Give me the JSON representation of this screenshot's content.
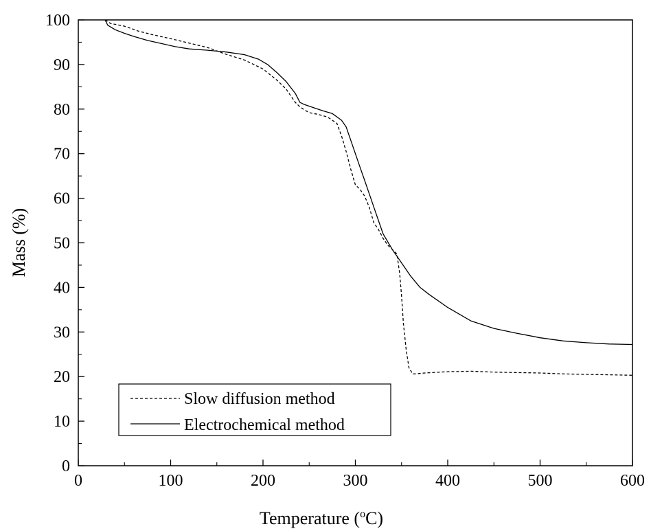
{
  "chart_data": {
    "type": "line",
    "xlabel": "Temperature (",
    "xlabel_sup": "o",
    "xlabel_suffix": "C)",
    "ylabel": "Mass (%)",
    "xlim": [
      0,
      600
    ],
    "ylim": [
      0,
      100
    ],
    "xticks": [
      0,
      100,
      200,
      300,
      400,
      500,
      600
    ],
    "yticks": [
      0,
      10,
      20,
      30,
      40,
      50,
      60,
      70,
      80,
      90,
      100
    ],
    "grid": false,
    "legend_position": "bottom-left",
    "series": [
      {
        "name": "Slow diffusion method",
        "style": "dashed",
        "color": "#000000",
        "x": [
          29,
          35,
          50,
          65,
          80,
          100,
          120,
          140,
          160,
          180,
          200,
          215,
          225,
          235,
          240,
          245,
          250,
          260,
          270,
          280,
          285,
          290,
          295,
          300,
          305,
          310,
          315,
          320,
          325,
          330,
          335,
          340,
          345,
          348,
          350,
          352,
          355,
          358,
          362,
          365,
          375,
          400,
          425,
          450,
          475,
          500,
          525,
          550,
          575,
          600
        ],
        "y": [
          100,
          99.2,
          98.6,
          97.5,
          96.7,
          95.8,
          94.8,
          93.8,
          92.3,
          91.0,
          89.0,
          86.5,
          84.5,
          81.5,
          80.5,
          79.8,
          79.2,
          78.8,
          78.2,
          76.8,
          74.0,
          70.5,
          66.5,
          63.0,
          62.0,
          60.5,
          58.0,
          54.5,
          53.0,
          51.0,
          49.5,
          48.5,
          47.5,
          43.0,
          38.0,
          32.0,
          26.0,
          22.0,
          20.6,
          20.6,
          20.8,
          21.1,
          21.2,
          21.0,
          20.9,
          20.8,
          20.6,
          20.5,
          20.4,
          20.3
        ]
      },
      {
        "name": "Electrochemical method",
        "style": "solid",
        "color": "#000000",
        "x": [
          29,
          32,
          40,
          50,
          60,
          75,
          90,
          105,
          120,
          140,
          160,
          180,
          195,
          205,
          215,
          225,
          235,
          240,
          245,
          255,
          265,
          275,
          285,
          290,
          295,
          300,
          305,
          310,
          315,
          320,
          325,
          330,
          340,
          350,
          360,
          370,
          380,
          400,
          425,
          450,
          475,
          500,
          525,
          550,
          575,
          600
        ],
        "y": [
          100,
          98.8,
          97.8,
          97.0,
          96.3,
          95.4,
          94.7,
          94.0,
          93.5,
          93.2,
          92.8,
          92.2,
          91.2,
          90.0,
          88.2,
          86.2,
          83.5,
          81.5,
          81.0,
          80.3,
          79.6,
          79.0,
          77.5,
          76.0,
          73.0,
          70.0,
          67.0,
          64.0,
          61.0,
          58.0,
          55.0,
          52.0,
          48.5,
          45.5,
          42.5,
          40.0,
          38.4,
          35.5,
          32.5,
          30.8,
          29.7,
          28.7,
          28.0,
          27.6,
          27.3,
          27.2
        ]
      }
    ]
  }
}
